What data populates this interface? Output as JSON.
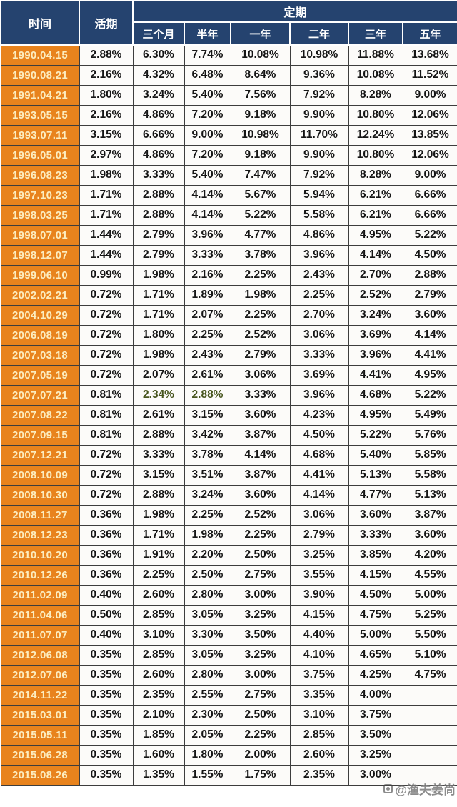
{
  "header": {
    "time_label": "时间",
    "demand_label": "活期",
    "fixed_group_label": "定期",
    "term_labels": [
      "三个月",
      "半年",
      "一年",
      "二年",
      "三年",
      "五年"
    ]
  },
  "watermark": {
    "text": "@渔夫姜尚",
    "icon": "logo-icon"
  },
  "colors": {
    "header_navy": "#25436F",
    "date_orange": "#E8831D",
    "date_text": "#FCEDC0",
    "cell_bg": "#FCFBF9",
    "cell_text": "#151515",
    "highlight_green": "#47551D",
    "grid_line": "#3D3D3D"
  },
  "highlight": [
    {
      "row": "2007.07.21",
      "value_index": 1
    },
    {
      "row": "2007.07.21",
      "value_index": 2
    }
  ],
  "chart_data": {
    "type": "table",
    "columns": [
      "时间",
      "活期",
      "三个月",
      "半年",
      "一年",
      "二年",
      "三年",
      "五年"
    ],
    "rows": [
      {
        "date": "1990.04.15",
        "values": [
          "2.88%",
          "6.30%",
          "7.74%",
          "10.08%",
          "10.98%",
          "11.88%",
          "13.68%"
        ]
      },
      {
        "date": "1990.08.21",
        "values": [
          "2.16%",
          "4.32%",
          "6.48%",
          "8.64%",
          "9.36%",
          "10.08%",
          "11.52%"
        ]
      },
      {
        "date": "1991.04.21",
        "values": [
          "1.80%",
          "3.24%",
          "5.40%",
          "7.56%",
          "7.92%",
          "8.28%",
          "9.00%"
        ]
      },
      {
        "date": "1993.05.15",
        "values": [
          "2.16%",
          "4.86%",
          "7.20%",
          "9.18%",
          "9.90%",
          "10.80%",
          "12.06%"
        ]
      },
      {
        "date": "1993.07.11",
        "values": [
          "3.15%",
          "6.66%",
          "9.00%",
          "10.98%",
          "11.70%",
          "12.24%",
          "13.85%"
        ]
      },
      {
        "date": "1996.05.01",
        "values": [
          "2.97%",
          "4.86%",
          "7.20%",
          "9.18%",
          "9.90%",
          "10.80%",
          "12.06%"
        ]
      },
      {
        "date": "1996.08.23",
        "values": [
          "1.98%",
          "3.33%",
          "5.40%",
          "7.47%",
          "7.92%",
          "8.28%",
          "9.00%"
        ]
      },
      {
        "date": "1997.10.23",
        "values": [
          "1.71%",
          "2.88%",
          "4.14%",
          "5.67%",
          "5.94%",
          "6.21%",
          "6.66%"
        ]
      },
      {
        "date": "1998.03.25",
        "values": [
          "1.71%",
          "2.88%",
          "4.14%",
          "5.22%",
          "5.58%",
          "6.21%",
          "6.66%"
        ]
      },
      {
        "date": "1998.07.01",
        "values": [
          "1.44%",
          "2.79%",
          "3.96%",
          "4.77%",
          "4.86%",
          "4.95%",
          "5.22%"
        ]
      },
      {
        "date": "1998.12.07",
        "values": [
          "1.44%",
          "2.79%",
          "3.33%",
          "3.78%",
          "3.96%",
          "4.14%",
          "4.50%"
        ]
      },
      {
        "date": "1999.06.10",
        "values": [
          "0.99%",
          "1.98%",
          "2.16%",
          "2.25%",
          "2.43%",
          "2.70%",
          "2.88%"
        ]
      },
      {
        "date": "2002.02.21",
        "values": [
          "0.72%",
          "1.71%",
          "1.89%",
          "1.98%",
          "2.25%",
          "2.52%",
          "2.79%"
        ]
      },
      {
        "date": "2004.10.29",
        "values": [
          "0.72%",
          "1.71%",
          "2.07%",
          "2.25%",
          "2.70%",
          "3.24%",
          "3.60%"
        ]
      },
      {
        "date": "2006.08.19",
        "values": [
          "0.72%",
          "1.80%",
          "2.25%",
          "2.52%",
          "3.06%",
          "3.69%",
          "4.14%"
        ]
      },
      {
        "date": "2007.03.18",
        "values": [
          "0.72%",
          "1.98%",
          "2.43%",
          "2.79%",
          "3.33%",
          "3.96%",
          "4.41%"
        ]
      },
      {
        "date": "2007.05.19",
        "values": [
          "0.72%",
          "2.07%",
          "2.61%",
          "3.06%",
          "3.69%",
          "4.41%",
          "4.95%"
        ]
      },
      {
        "date": "2007.07.21",
        "values": [
          "0.81%",
          "2.34%",
          "2.88%",
          "3.33%",
          "3.96%",
          "4.68%",
          "5.22%"
        ]
      },
      {
        "date": "2007.08.22",
        "values": [
          "0.81%",
          "2.61%",
          "3.15%",
          "3.60%",
          "4.23%",
          "4.95%",
          "5.49%"
        ]
      },
      {
        "date": "2007.09.15",
        "values": [
          "0.81%",
          "2.88%",
          "3.42%",
          "3.87%",
          "4.50%",
          "5.22%",
          "5.76%"
        ]
      },
      {
        "date": "2007.12.21",
        "values": [
          "0.72%",
          "3.33%",
          "3.78%",
          "4.14%",
          "4.68%",
          "5.40%",
          "5.85%"
        ]
      },
      {
        "date": "2008.10.09",
        "values": [
          "0.72%",
          "3.15%",
          "3.51%",
          "3.87%",
          "4.41%",
          "5.13%",
          "5.58%"
        ]
      },
      {
        "date": "2008.10.30",
        "values": [
          "0.72%",
          "2.88%",
          "3.24%",
          "3.60%",
          "4.14%",
          "4.77%",
          "5.13%"
        ]
      },
      {
        "date": "2008.11.27",
        "values": [
          "0.36%",
          "1.98%",
          "2.25%",
          "2.52%",
          "3.06%",
          "3.60%",
          "3.87%"
        ]
      },
      {
        "date": "2008.12.23",
        "values": [
          "0.36%",
          "1.71%",
          "1.98%",
          "2.25%",
          "2.79%",
          "3.33%",
          "3.60%"
        ]
      },
      {
        "date": "2010.10.20",
        "values": [
          "0.36%",
          "1.91%",
          "2.20%",
          "2.50%",
          "3.25%",
          "3.85%",
          "4.20%"
        ]
      },
      {
        "date": "2010.12.26",
        "values": [
          "0.36%",
          "2.25%",
          "2.50%",
          "2.75%",
          "3.55%",
          "4.15%",
          "4.55%"
        ]
      },
      {
        "date": "2011.02.09",
        "values": [
          "0.40%",
          "2.60%",
          "2.80%",
          "3.00%",
          "3.90%",
          "4.50%",
          "5.00%"
        ]
      },
      {
        "date": "2011.04.06",
        "values": [
          "0.50%",
          "2.85%",
          "3.05%",
          "3.25%",
          "4.15%",
          "4.75%",
          "5.25%"
        ]
      },
      {
        "date": "2011.07.07",
        "values": [
          "0.40%",
          "3.10%",
          "3.30%",
          "3.50%",
          "4.40%",
          "5.00%",
          "5.50%"
        ]
      },
      {
        "date": "2012.06.08",
        "values": [
          "0.35%",
          "2.85%",
          "3.05%",
          "3.25%",
          "4.10%",
          "4.65%",
          "5.10%"
        ]
      },
      {
        "date": "2012.07.06",
        "values": [
          "0.35%",
          "2.60%",
          "2.80%",
          "3.00%",
          "3.75%",
          "4.25%",
          "4.75%"
        ]
      },
      {
        "date": "2014.11.22",
        "values": [
          "0.35%",
          "2.35%",
          "2.55%",
          "2.75%",
          "3.35%",
          "4.00%",
          ""
        ]
      },
      {
        "date": "2015.03.01",
        "values": [
          "0.35%",
          "2.10%",
          "2.30%",
          "2.50%",
          "3.10%",
          "3.75%",
          ""
        ]
      },
      {
        "date": "2015.05.11",
        "values": [
          "0.35%",
          "1.85%",
          "2.05%",
          "2.25%",
          "2.85%",
          "3.50%",
          ""
        ]
      },
      {
        "date": "2015.06.28",
        "values": [
          "0.35%",
          "1.60%",
          "1.80%",
          "2.00%",
          "2.60%",
          "3.25%",
          ""
        ]
      },
      {
        "date": "2015.08.26",
        "values": [
          "0.35%",
          "1.35%",
          "1.55%",
          "1.75%",
          "2.35%",
          "3.00%",
          ""
        ]
      }
    ]
  }
}
